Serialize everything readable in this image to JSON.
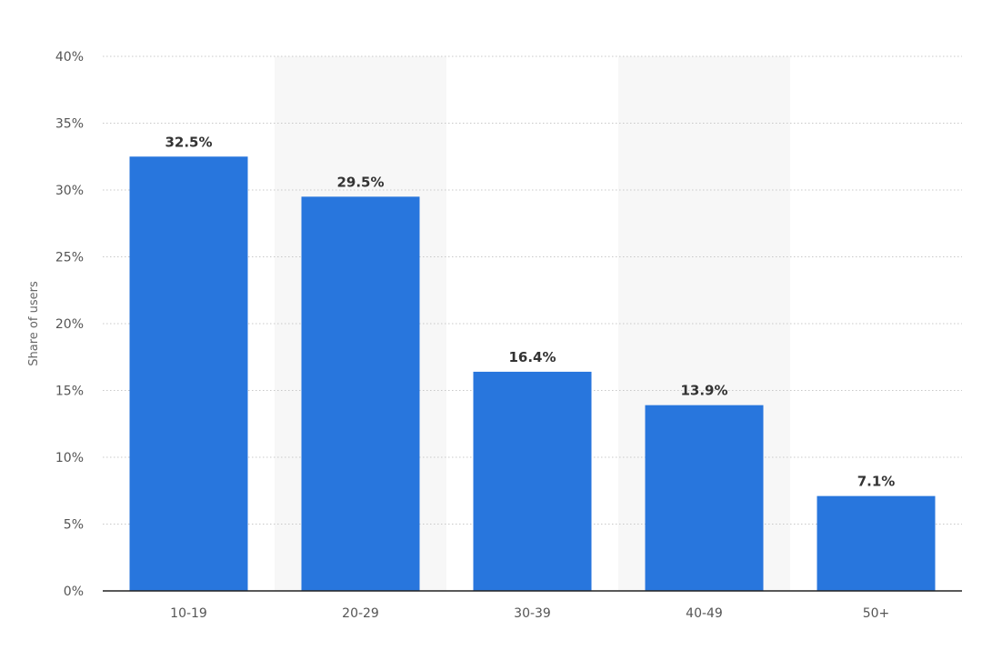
{
  "chart_data": {
    "type": "bar",
    "categories": [
      "10-19",
      "20-29",
      "30-39",
      "40-49",
      "50+"
    ],
    "values": [
      32.5,
      29.5,
      16.4,
      13.9,
      7.1
    ],
    "value_labels": [
      "32.5%",
      "29.5%",
      "16.4%",
      "13.9%",
      "7.1%"
    ],
    "title": "",
    "xlabel": "",
    "ylabel": "Share of users",
    "ylim": [
      0,
      40
    ],
    "yticks": [
      0,
      5,
      10,
      15,
      20,
      25,
      30,
      35,
      40
    ],
    "ytick_labels": [
      "0%",
      "5%",
      "10%",
      "15%",
      "20%",
      "25%",
      "30%",
      "35%",
      "40%"
    ],
    "grid": true,
    "bar_color": "#2876dd",
    "alternate_band_color": "#f7f7f7"
  }
}
